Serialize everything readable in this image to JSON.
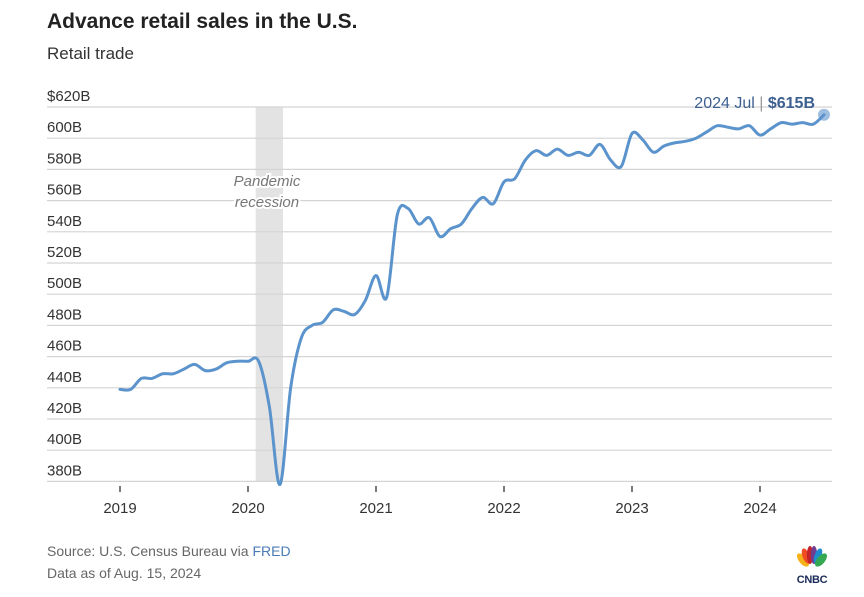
{
  "title": "Advance retail sales in the U.S.",
  "subtitle": "Retail trade",
  "chart_data": {
    "type": "line",
    "title": "Advance retail sales in the U.S.",
    "subtitle": "Retail trade",
    "xlabel": "",
    "ylabel": "",
    "x_start": "2019 Jan",
    "frequency": "monthly",
    "x_ticks": [
      "2019",
      "2020",
      "2021",
      "2022",
      "2023",
      "2024"
    ],
    "y_ticks": [
      "$620B",
      "600B",
      "580B",
      "560B",
      "540B",
      "520B",
      "500B",
      "480B",
      "460B",
      "440B",
      "420B",
      "400B",
      "380B"
    ],
    "y_tick_values": [
      620,
      600,
      580,
      560,
      540,
      520,
      500,
      480,
      460,
      440,
      420,
      400,
      380
    ],
    "ylim": [
      380,
      620
    ],
    "grid": true,
    "units": "billions USD",
    "series": [
      {
        "values": [
          439,
          439,
          446,
          446,
          449,
          449,
          452,
          455,
          451,
          452,
          456,
          457,
          457,
          457,
          428,
          378,
          440,
          472,
          480,
          482,
          490,
          489,
          487,
          496,
          512,
          498,
          551,
          555,
          545,
          549,
          537,
          542,
          545,
          555,
          562,
          558,
          572,
          574,
          586,
          592,
          589,
          593,
          589,
          591,
          589,
          596,
          586,
          582,
          603,
          599,
          591,
          595,
          597,
          598,
          600,
          604,
          608,
          607,
          606,
          608,
          602,
          606,
          610,
          609,
          610,
          609,
          615
        ]
      }
    ],
    "shaded_region": {
      "label_line1": "Pandemic",
      "label_line2": "recession",
      "start": "2020 Feb",
      "end": "2020 Apr"
    },
    "annotation": {
      "date": "2024 Jul",
      "sep": "|",
      "value": "$615B"
    },
    "line_color": "#5b93cc",
    "shade_color": "#e3e3e3"
  },
  "footer": {
    "source_prefix": "Source: U.S. Census Bureau via ",
    "source_link": "FRED",
    "data_as_of": "Data as of Aug. 15, 2024"
  },
  "logo": {
    "text": "CNBC"
  }
}
